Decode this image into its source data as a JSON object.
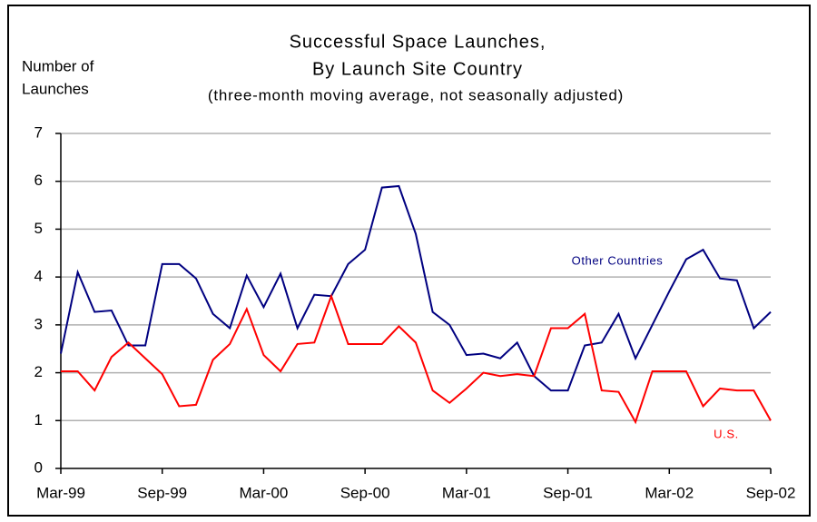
{
  "chart_data": {
    "type": "line",
    "title": [
      "Successful Space Launches,",
      "By Launch Site Country"
    ],
    "subtitle": "(three-month moving average, not seasonally adjusted)",
    "ylabel": [
      "Number of",
      "Launches"
    ],
    "categories": [
      "Mar-99",
      null,
      null,
      null,
      null,
      null,
      "Sep-99",
      null,
      null,
      null,
      null,
      null,
      "Mar-00",
      null,
      null,
      null,
      null,
      null,
      "Sep-00",
      null,
      null,
      null,
      null,
      null,
      "Mar-01",
      null,
      null,
      null,
      null,
      null,
      "Sep-01",
      null,
      null,
      null,
      null,
      null,
      "Mar-02",
      null,
      null,
      null,
      null,
      null,
      "Sep-02"
    ],
    "series": [
      {
        "name": "Other Countries",
        "color": "#000080",
        "values": [
          2.4,
          4.1,
          3.27,
          3.3,
          2.57,
          2.57,
          4.27,
          4.27,
          3.97,
          3.23,
          2.93,
          4.03,
          3.37,
          4.07,
          2.93,
          3.63,
          3.6,
          4.27,
          4.57,
          5.87,
          5.9,
          4.9,
          3.27,
          3.0,
          2.37,
          2.4,
          2.3,
          2.63,
          1.93,
          1.63,
          1.63,
          2.57,
          2.63,
          3.23,
          2.3,
          3.0,
          3.7,
          4.37,
          4.57,
          3.97,
          3.93,
          2.93,
          3.27
        ]
      },
      {
        "name": "U.S.",
        "color": "#ff0000",
        "values": [
          2.03,
          2.03,
          1.63,
          2.33,
          2.63,
          2.3,
          1.97,
          1.3,
          1.33,
          2.27,
          2.6,
          3.33,
          2.37,
          2.03,
          2.6,
          2.63,
          3.6,
          2.6,
          2.6,
          2.6,
          2.97,
          2.63,
          1.63,
          1.37,
          1.67,
          2.0,
          1.93,
          1.97,
          1.93,
          2.93,
          2.93,
          3.23,
          1.63,
          1.6,
          0.97,
          2.03,
          2.03,
          2.03,
          1.3,
          1.67,
          1.63,
          1.63,
          1.0
        ]
      }
    ],
    "ylim": [
      0,
      7
    ],
    "yticks": [
      0,
      1,
      2,
      3,
      4,
      5,
      6,
      7
    ],
    "grid": true
  }
}
